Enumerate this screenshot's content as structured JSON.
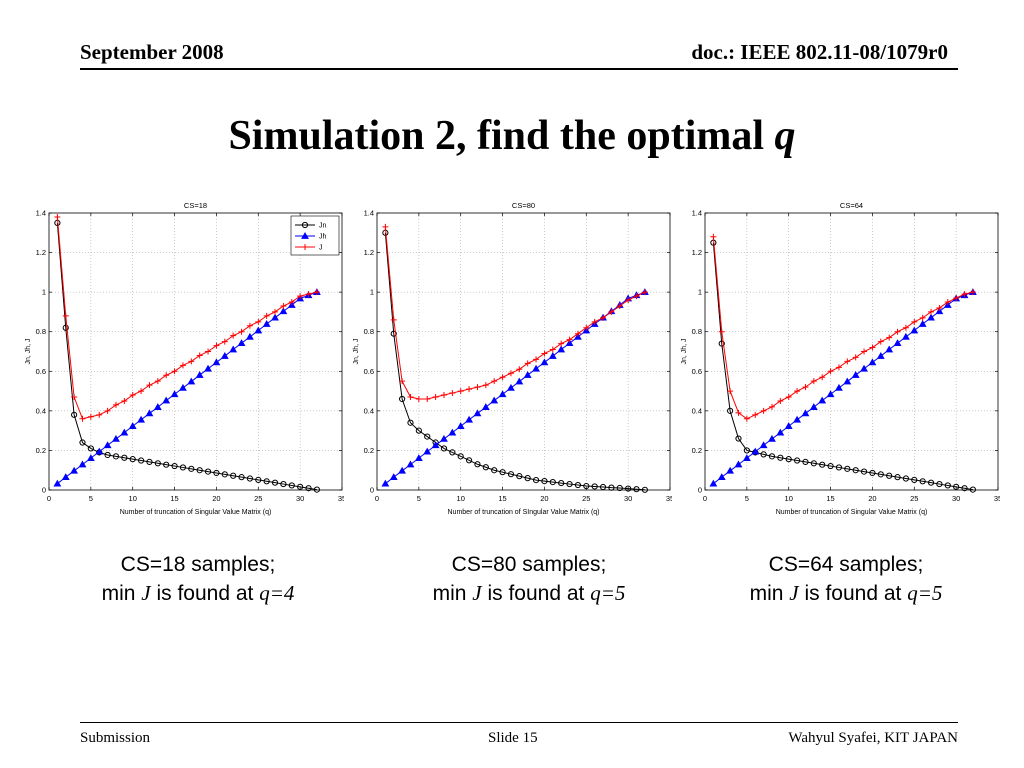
{
  "header": {
    "date": "September 2008",
    "doc": "doc.: IEEE 802.11-08/1079r0"
  },
  "title": "Simulation 2, find the optimal",
  "title_var": "q",
  "captions": [
    {
      "line1": "CS=18 samples;",
      "min": "min",
      "J": "J",
      "found": "is found at",
      "qeq": "q=4"
    },
    {
      "line1": "CS=80 samples;",
      "min": "min",
      "J": "J",
      "found": "is found at",
      "qeq": "q=5"
    },
    {
      "line1": "CS=64 samples;",
      "min": "min",
      "J": "J",
      "found": "is found at",
      "qeq": "q=5"
    }
  ],
  "footer": {
    "left": "Submission",
    "center": "Slide 15",
    "right": "Wahyul Syafei, KIT JAPAN"
  },
  "colors": {
    "Jn": "#000000",
    "Jh": "#0000ff",
    "J": "#ff0000"
  },
  "chart_data": [
    {
      "type": "line",
      "title": "CS=18",
      "xlabel": "Number of truncation of Singular Value Matrix (q)",
      "ylabel": "Jn, Jh, J",
      "xlim": [
        0,
        35
      ],
      "ylim": [
        0,
        1.4
      ],
      "xticks": [
        0,
        5,
        10,
        15,
        20,
        25,
        30,
        35
      ],
      "yticks": [
        0,
        0.2,
        0.4,
        0.6,
        0.8,
        1,
        1.2,
        1.4
      ],
      "grid": true,
      "legend": "top-right",
      "legend_entries": [
        "Jn",
        "Jh",
        "J"
      ],
      "x": [
        1,
        2,
        3,
        4,
        5,
        6,
        7,
        8,
        9,
        10,
        11,
        12,
        13,
        14,
        15,
        16,
        17,
        18,
        19,
        20,
        21,
        22,
        23,
        24,
        25,
        26,
        27,
        28,
        29,
        30,
        31,
        32
      ],
      "series": [
        {
          "name": "Jn",
          "values": [
            1.35,
            0.82,
            0.38,
            0.24,
            0.21,
            0.19,
            0.177,
            0.17,
            0.163,
            0.156,
            0.149,
            0.142,
            0.135,
            0.128,
            0.121,
            0.114,
            0.107,
            0.1,
            0.093,
            0.086,
            0.079,
            0.072,
            0.065,
            0.058,
            0.051,
            0.044,
            0.037,
            0.03,
            0.023,
            0.016,
            0.009,
            0.002
          ]
        },
        {
          "name": "Jh",
          "values": [
            0.032,
            0.065,
            0.097,
            0.129,
            0.161,
            0.194,
            0.226,
            0.258,
            0.29,
            0.323,
            0.355,
            0.387,
            0.419,
            0.452,
            0.484,
            0.516,
            0.548,
            0.581,
            0.613,
            0.645,
            0.677,
            0.71,
            0.742,
            0.774,
            0.806,
            0.839,
            0.871,
            0.903,
            0.935,
            0.968,
            0.984,
            1.0
          ]
        },
        {
          "name": "J",
          "values": [
            1.38,
            0.88,
            0.47,
            0.36,
            0.37,
            0.38,
            0.4,
            0.43,
            0.45,
            0.48,
            0.5,
            0.53,
            0.55,
            0.58,
            0.6,
            0.63,
            0.65,
            0.68,
            0.7,
            0.73,
            0.75,
            0.78,
            0.8,
            0.83,
            0.85,
            0.88,
            0.9,
            0.93,
            0.95,
            0.98,
            0.99,
            1.0
          ]
        }
      ]
    },
    {
      "type": "line",
      "title": "CS=80",
      "xlabel": "Number of truncation of SIngular Value Matrix (q)",
      "ylabel": "Jn, Jh, J",
      "xlim": [
        0,
        35
      ],
      "ylim": [
        0,
        1.4
      ],
      "xticks": [
        0,
        5,
        10,
        15,
        20,
        25,
        30,
        35
      ],
      "yticks": [
        0,
        0.2,
        0.4,
        0.6,
        0.8,
        1,
        1.2,
        1.4
      ],
      "grid": true,
      "x": [
        1,
        2,
        3,
        4,
        5,
        6,
        7,
        8,
        9,
        10,
        11,
        12,
        13,
        14,
        15,
        16,
        17,
        18,
        19,
        20,
        21,
        22,
        23,
        24,
        25,
        26,
        27,
        28,
        29,
        30,
        31,
        32
      ],
      "series": [
        {
          "name": "Jn",
          "values": [
            1.3,
            0.79,
            0.46,
            0.34,
            0.3,
            0.27,
            0.24,
            0.21,
            0.19,
            0.17,
            0.15,
            0.13,
            0.115,
            0.1,
            0.09,
            0.08,
            0.07,
            0.06,
            0.05,
            0.045,
            0.04,
            0.035,
            0.03,
            0.025,
            0.02,
            0.018,
            0.015,
            0.012,
            0.01,
            0.007,
            0.004,
            0.001
          ]
        },
        {
          "name": "Jh",
          "values": [
            0.032,
            0.065,
            0.097,
            0.129,
            0.161,
            0.194,
            0.226,
            0.258,
            0.29,
            0.323,
            0.355,
            0.387,
            0.419,
            0.452,
            0.484,
            0.516,
            0.548,
            0.581,
            0.613,
            0.645,
            0.677,
            0.71,
            0.742,
            0.774,
            0.806,
            0.839,
            0.871,
            0.903,
            0.935,
            0.968,
            0.984,
            1.0
          ]
        },
        {
          "name": "J",
          "values": [
            1.33,
            0.86,
            0.55,
            0.47,
            0.46,
            0.46,
            0.47,
            0.48,
            0.49,
            0.5,
            0.51,
            0.52,
            0.53,
            0.55,
            0.57,
            0.59,
            0.61,
            0.64,
            0.66,
            0.69,
            0.71,
            0.74,
            0.76,
            0.79,
            0.82,
            0.85,
            0.87,
            0.9,
            0.93,
            0.96,
            0.98,
            1.0
          ]
        }
      ]
    },
    {
      "type": "line",
      "title": "CS=64",
      "xlabel": "Number of truncation of Singular Value Matrix (q)",
      "ylabel": "Jn, Jh, J",
      "xlim": [
        0,
        35
      ],
      "ylim": [
        0,
        1.4
      ],
      "xticks": [
        0,
        5,
        10,
        15,
        20,
        25,
        30,
        35
      ],
      "yticks": [
        0,
        0.2,
        0.4,
        0.6,
        0.8,
        1,
        1.2,
        1.4
      ],
      "grid": true,
      "x": [
        1,
        2,
        3,
        4,
        5,
        6,
        7,
        8,
        9,
        10,
        11,
        12,
        13,
        14,
        15,
        16,
        17,
        18,
        19,
        20,
        21,
        22,
        23,
        24,
        25,
        26,
        27,
        28,
        29,
        30,
        31,
        32
      ],
      "series": [
        {
          "name": "Jn",
          "values": [
            1.25,
            0.74,
            0.4,
            0.26,
            0.2,
            0.19,
            0.18,
            0.17,
            0.163,
            0.156,
            0.149,
            0.142,
            0.135,
            0.128,
            0.121,
            0.114,
            0.107,
            0.1,
            0.093,
            0.086,
            0.079,
            0.072,
            0.065,
            0.058,
            0.051,
            0.044,
            0.037,
            0.03,
            0.023,
            0.016,
            0.009,
            0.002
          ]
        },
        {
          "name": "Jh",
          "values": [
            0.032,
            0.065,
            0.097,
            0.129,
            0.161,
            0.194,
            0.226,
            0.258,
            0.29,
            0.323,
            0.355,
            0.387,
            0.419,
            0.452,
            0.484,
            0.516,
            0.548,
            0.581,
            0.613,
            0.645,
            0.677,
            0.71,
            0.742,
            0.774,
            0.806,
            0.839,
            0.871,
            0.903,
            0.935,
            0.968,
            0.984,
            1.0
          ]
        },
        {
          "name": "J",
          "values": [
            1.28,
            0.8,
            0.5,
            0.39,
            0.36,
            0.38,
            0.4,
            0.42,
            0.45,
            0.47,
            0.5,
            0.52,
            0.55,
            0.57,
            0.6,
            0.62,
            0.65,
            0.67,
            0.7,
            0.72,
            0.75,
            0.77,
            0.8,
            0.82,
            0.85,
            0.87,
            0.9,
            0.92,
            0.95,
            0.97,
            0.99,
            1.0
          ]
        }
      ]
    }
  ]
}
